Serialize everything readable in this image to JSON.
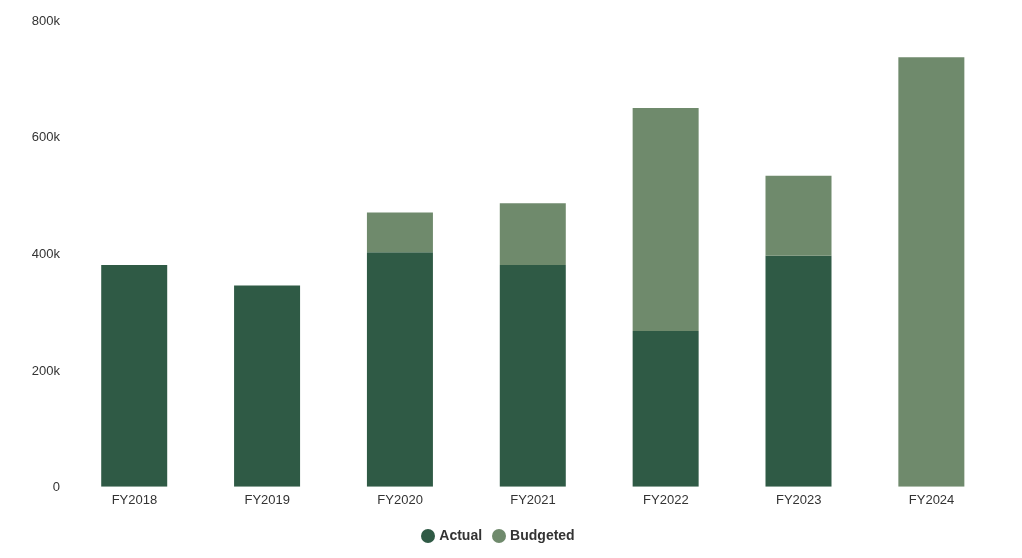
{
  "chart_data": {
    "type": "bar",
    "stacked": true,
    "categories": [
      "FY2018",
      "FY2019",
      "FY2020",
      "FY2021",
      "FY2022",
      "FY2023",
      "FY2024"
    ],
    "series": [
      {
        "name": "Actual",
        "color": "#2f5a45",
        "values": [
          380000,
          345000,
          402000,
          380000,
          267000,
          396000,
          null
        ]
      },
      {
        "name": "Budgeted",
        "color": "#6f8a6c",
        "values": [
          null,
          null,
          68000,
          106000,
          382000,
          137000,
          736000
        ]
      }
    ],
    "ylim": [
      0,
      800000
    ],
    "yticks": [
      {
        "value": 0,
        "label": "0"
      },
      {
        "value": 200000,
        "label": "200k"
      },
      {
        "value": 400000,
        "label": "400k"
      },
      {
        "value": 600000,
        "label": "600k"
      },
      {
        "value": 800000,
        "label": "800k"
      }
    ],
    "grid": false,
    "legend": "bottom"
  }
}
